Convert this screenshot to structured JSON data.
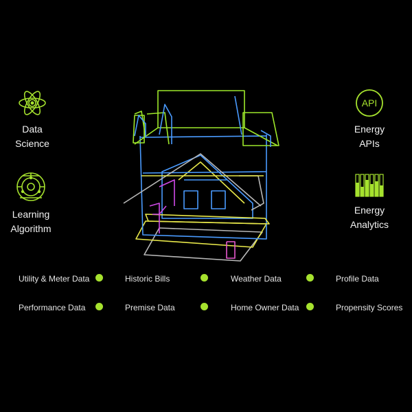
{
  "colors": {
    "background": "#000000",
    "accent": "#a6e22e",
    "house_blue": "#4a9bff",
    "house_green": "#9ee82a",
    "house_yellow": "#e8e84a",
    "house_magenta": "#d04ae8",
    "house_gray": "#b8b8b8"
  },
  "features": [
    {
      "id": "data-science",
      "icon": "atom-icon",
      "line1": "Data",
      "line2": "Science"
    },
    {
      "id": "learning-algorithm",
      "icon": "orbit-network-icon",
      "line1": "Learning",
      "line2": "Algorithm"
    },
    {
      "id": "energy-apis",
      "icon": "api-icon",
      "icon_text": "API",
      "line1": "Energy",
      "line2": "APIs"
    },
    {
      "id": "energy-analytics",
      "icon": "bar-levels-icon",
      "line1": "Energy",
      "line2": "Analytics"
    }
  ],
  "data_sources": [
    "Utility & Meter Data",
    "Historic Bills",
    "Weather Data",
    "Profile Data",
    "Performance Data",
    "Premise Data",
    "Home Owner Data",
    "Propensity Scores"
  ]
}
